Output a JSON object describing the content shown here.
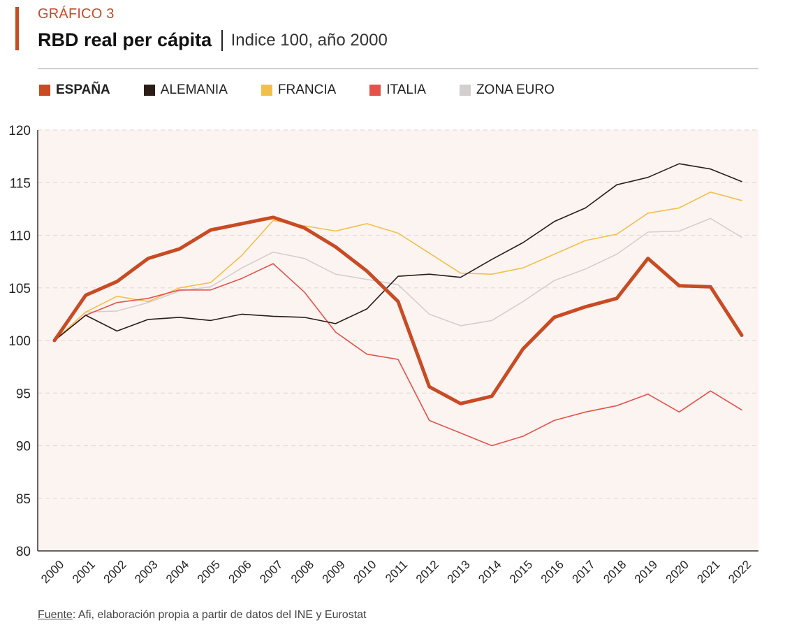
{
  "header": {
    "kicker": "GRÁFICO 3",
    "title": "RBD real per cápita",
    "subtitle": "Indice 100, año 2000"
  },
  "footer": {
    "source_label": "Fuente",
    "source_text": ": Afi, elaboración propia a partir de datos del INE y Eurostat"
  },
  "chart_data": {
    "type": "line",
    "title": "RBD real per cápita",
    "subtitle": "Indice 100, año 2000",
    "xlabel": "",
    "ylabel": "",
    "ylim": [
      80,
      120
    ],
    "yticks": [
      80,
      85,
      90,
      95,
      100,
      105,
      110,
      115,
      120
    ],
    "grid": true,
    "legend_position": "top-left",
    "x": [
      "2000",
      "2001",
      "2002",
      "2003",
      "2004",
      "2005",
      "2006",
      "2007",
      "2008",
      "2009",
      "2010",
      "2011",
      "2012",
      "2013",
      "2014",
      "2015",
      "2016",
      "2017",
      "2018",
      "2019",
      "2020",
      "2021",
      "2022"
    ],
    "series": [
      {
        "name": "ESPAÑA",
        "color": "#c84b24",
        "emphasis": true,
        "values": [
          100,
          104.3,
          105.6,
          107.8,
          108.7,
          110.5,
          111.1,
          111.7,
          110.7,
          108.9,
          106.6,
          103.7,
          95.6,
          94.0,
          94.7,
          99.2,
          102.2,
          103.2,
          104.0,
          107.8,
          105.2,
          105.1,
          100.5
        ]
      },
      {
        "name": "ALEMANIA",
        "color": "#2b1d17",
        "emphasis": false,
        "values": [
          100,
          102.4,
          100.9,
          102.0,
          102.2,
          101.9,
          102.5,
          102.3,
          102.2,
          101.6,
          103.0,
          106.1,
          106.3,
          106.0,
          107.7,
          109.3,
          111.3,
          112.6,
          114.8,
          115.5,
          116.8,
          116.3,
          115.1
        ]
      },
      {
        "name": "FRANCIA",
        "color": "#f2c04a",
        "emphasis": false,
        "values": [
          100,
          102.7,
          104.2,
          103.7,
          105.0,
          105.5,
          108.1,
          111.4,
          110.9,
          110.4,
          111.1,
          110.2,
          108.3,
          106.4,
          106.3,
          106.9,
          108.2,
          109.5,
          110.1,
          112.1,
          112.6,
          114.1,
          113.3
        ]
      },
      {
        "name": "ITALIA",
        "color": "#e5524a",
        "emphasis": false,
        "values": [
          100,
          102.4,
          103.6,
          104.0,
          104.8,
          104.8,
          105.9,
          107.3,
          104.6,
          100.8,
          98.7,
          98.2,
          92.4,
          91.2,
          90.0,
          90.9,
          92.4,
          93.2,
          93.8,
          94.9,
          93.2,
          95.2,
          93.4
        ]
      },
      {
        "name": "ZONA EURO",
        "color": "#d3cfcf",
        "emphasis": false,
        "values": [
          100,
          102.7,
          102.8,
          103.6,
          104.7,
          105.1,
          106.9,
          108.4,
          107.8,
          106.3,
          105.8,
          105.3,
          102.5,
          101.4,
          101.9,
          103.7,
          105.7,
          106.8,
          108.2,
          110.3,
          110.4,
          111.6,
          109.8
        ]
      }
    ],
    "plot_background": "#fcf4f1"
  }
}
